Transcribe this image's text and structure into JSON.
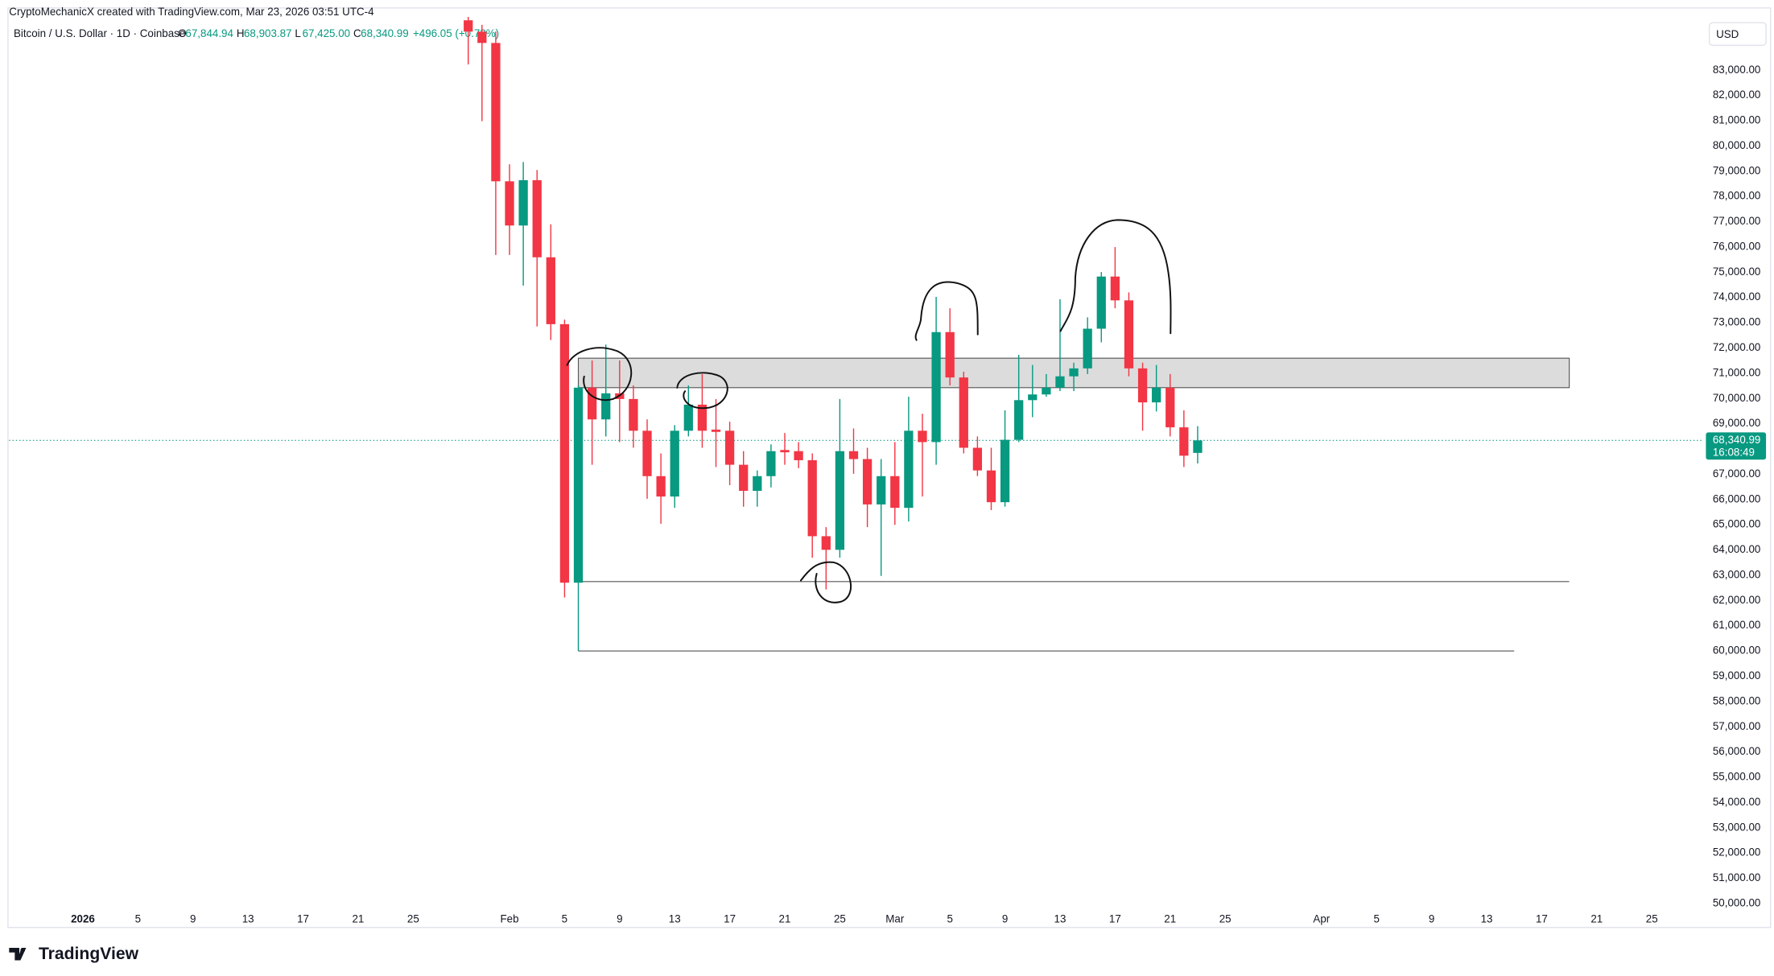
{
  "chart_data": {
    "type": "candlestick",
    "credit": "CryptoMechanicX created with TradingView.com, Mar 23, 2026 03:51 UTC-4",
    "symbol": "Bitcoin / U.S. Dollar · 1D · Coinbase",
    "ohlc_header": [
      {
        "key": "O",
        "label": "67,844.94"
      },
      {
        "key": "H",
        "label": "68,903.87"
      },
      {
        "key": "L",
        "label": "67,425.00"
      },
      {
        "key": "C",
        "label": "68,340.99"
      }
    ],
    "change": "+496.05 (+0.73%)",
    "currency": "USD",
    "logo": "TradingView",
    "last_price": {
      "value": 68340.99,
      "label": "68,340.99"
    },
    "countdown": "16:08:49",
    "up_color": "#089981",
    "down_color": "#f23645",
    "grid": false,
    "x": [
      28,
      29,
      30,
      31,
      32,
      33,
      34,
      35,
      36,
      37,
      38,
      39,
      40,
      41,
      42,
      43,
      44,
      45,
      46,
      47,
      48,
      49,
      50,
      51,
      52,
      53,
      54,
      55,
      56,
      57,
      58,
      59,
      60,
      61,
      62,
      63,
      64,
      65,
      66,
      67,
      68,
      69,
      70,
      71,
      72,
      73,
      74,
      75,
      76,
      77,
      78,
      79,
      80,
      81
    ],
    "open": [
      84976,
      84527,
      84078,
      78600,
      76849,
      78645,
      75591,
      72942,
      62705,
      70428,
      69171,
      70204,
      69979,
      68722,
      66924,
      66117,
      68722,
      69755,
      68767,
      68722,
      67375,
      66342,
      66924,
      67959,
      67914,
      67555,
      64546,
      64007,
      67914,
      67600,
      65804,
      66924,
      65669,
      68722,
      68273,
      72628,
      70832,
      68048,
      67150,
      65893,
      68363,
      69934,
      70159,
      70428,
      70877,
      71191,
      72763,
      74828,
      73885,
      71191,
      69845,
      70428,
      68857,
      67844.94
    ],
    "high": [
      85110,
      84796,
      84527,
      79273,
      79363,
      79049,
      76894,
      73122,
      70518,
      71506,
      72134,
      71506,
      70518,
      69171,
      67824,
      68946,
      70518,
      70967,
      69979,
      69081,
      67914,
      67150,
      68183,
      68632,
      68273,
      67824,
      64905,
      69979,
      68812,
      68048,
      67600,
      68273,
      70069,
      69395,
      74020,
      73571,
      71057,
      68497,
      68048,
      69530,
      71730,
      71326,
      70967,
      73930,
      71416,
      73212,
      75008,
      75996,
      74200,
      71416,
      71326,
      70967,
      69530,
      68903.87
    ],
    "low": [
      83225,
      80980,
      75681,
      75681,
      74469,
      72853,
      72314,
      62121,
      60000,
      67375,
      68497,
      68273,
      68048,
      66028,
      65040,
      65669,
      68497,
      68048,
      67285,
      66567,
      65714,
      65714,
      66477,
      67375,
      67240,
      63693,
      62436,
      63693,
      67016,
      64905,
      62975,
      64995,
      65130,
      66117,
      67375,
      70518,
      67824,
      66926,
      65579,
      65714,
      68273,
      69261,
      70069,
      70293,
      70293,
      70967,
      72224,
      73571,
      70877,
      68722,
      69485,
      68497,
      67285,
      67425
    ],
    "close": [
      84527,
      84078,
      78600,
      76849,
      78645,
      75591,
      72942,
      62705,
      70428,
      69171,
      70204,
      69979,
      68722,
      66924,
      66117,
      68722,
      69755,
      68722,
      68677,
      67375,
      66342,
      66924,
      67914,
      67869,
      67555,
      64546,
      64007,
      67914,
      67600,
      65804,
      66924,
      65669,
      68722,
      68273,
      72628,
      70832,
      68048,
      67150,
      65893,
      68363,
      69934,
      70159,
      70428,
      70877,
      71191,
      72763,
      74828,
      73885,
      71191,
      69845,
      70428,
      68857,
      67734,
      68340.99
    ],
    "zone": {
      "low": 70428,
      "high": 71595,
      "x": [
        36,
        108
      ]
    },
    "levels": [
      {
        "value": 62750,
        "x": [
          36,
          108
        ]
      },
      {
        "value": 60000,
        "x": [
          36,
          104
        ]
      }
    ],
    "xlim": [
      -5.36,
      117.6
    ],
    "xticks": [
      {
        "value": 0,
        "label": "2026"
      },
      {
        "value": 4,
        "label": "5"
      },
      {
        "value": 8,
        "label": "9"
      },
      {
        "value": 12,
        "label": "13"
      },
      {
        "value": 16,
        "label": "17"
      },
      {
        "value": 20,
        "label": "21"
      },
      {
        "value": 24,
        "label": "25"
      },
      {
        "value": 31,
        "label": "Feb"
      },
      {
        "value": 35,
        "label": "5"
      },
      {
        "value": 39,
        "label": "9"
      },
      {
        "value": 43,
        "label": "13"
      },
      {
        "value": 47,
        "label": "17"
      },
      {
        "value": 51,
        "label": "21"
      },
      {
        "value": 55,
        "label": "25"
      },
      {
        "value": 59,
        "label": "Mar"
      },
      {
        "value": 63,
        "label": "5"
      },
      {
        "value": 67,
        "label": "9"
      },
      {
        "value": 71,
        "label": "13"
      },
      {
        "value": 75,
        "label": "17"
      },
      {
        "value": 79,
        "label": "21"
      },
      {
        "value": 83,
        "label": "25"
      },
      {
        "value": 90,
        "label": "Apr"
      },
      {
        "value": 94,
        "label": "5"
      },
      {
        "value": 98,
        "label": "9"
      },
      {
        "value": 102,
        "label": "13"
      },
      {
        "value": 106,
        "label": "17"
      },
      {
        "value": 110,
        "label": "21"
      },
      {
        "value": 114,
        "label": "25"
      }
    ],
    "ylim": [
      49860,
      85420
    ],
    "yticks": [
      {
        "value": 50000,
        "label": "50,000.00"
      },
      {
        "value": 51000,
        "label": "51,000.00"
      },
      {
        "value": 52000,
        "label": "52,000.00"
      },
      {
        "value": 53000,
        "label": "53,000.00"
      },
      {
        "value": 54000,
        "label": "54,000.00"
      },
      {
        "value": 55000,
        "label": "55,000.00"
      },
      {
        "value": 56000,
        "label": "56,000.00"
      },
      {
        "value": 57000,
        "label": "57,000.00"
      },
      {
        "value": 58000,
        "label": "58,000.00"
      },
      {
        "value": 59000,
        "label": "59,000.00"
      },
      {
        "value": 60000,
        "label": "60,000.00"
      },
      {
        "value": 61000,
        "label": "61,000.00"
      },
      {
        "value": 62000,
        "label": "62,000.00"
      },
      {
        "value": 63000,
        "label": "63,000.00"
      },
      {
        "value": 64000,
        "label": "64,000.00"
      },
      {
        "value": 65000,
        "label": "65,000.00"
      },
      {
        "value": 66000,
        "label": "66,000.00"
      },
      {
        "value": 67000,
        "label": "67,000.00"
      },
      {
        "value": 68000,
        "label": "68,000.00"
      },
      {
        "value": 69000,
        "label": "69,000.00"
      },
      {
        "value": 70000,
        "label": "70,000.00"
      },
      {
        "value": 71000,
        "label": "71,000.00"
      },
      {
        "value": 72000,
        "label": "72,000.00"
      },
      {
        "value": 73000,
        "label": "73,000.00"
      },
      {
        "value": 74000,
        "label": "74,000.00"
      },
      {
        "value": 75000,
        "label": "75,000.00"
      },
      {
        "value": 76000,
        "label": "76,000.00"
      },
      {
        "value": 77000,
        "label": "77,000.00"
      },
      {
        "value": 78000,
        "label": "78,000.00"
      },
      {
        "value": 79000,
        "label": "79,000.00"
      },
      {
        "value": 80000,
        "label": "80,000.00"
      },
      {
        "value": 81000,
        "label": "81,000.00"
      },
      {
        "value": 82000,
        "label": "82,000.00"
      },
      {
        "value": 83000,
        "label": "83,000.00"
      }
    ]
  }
}
